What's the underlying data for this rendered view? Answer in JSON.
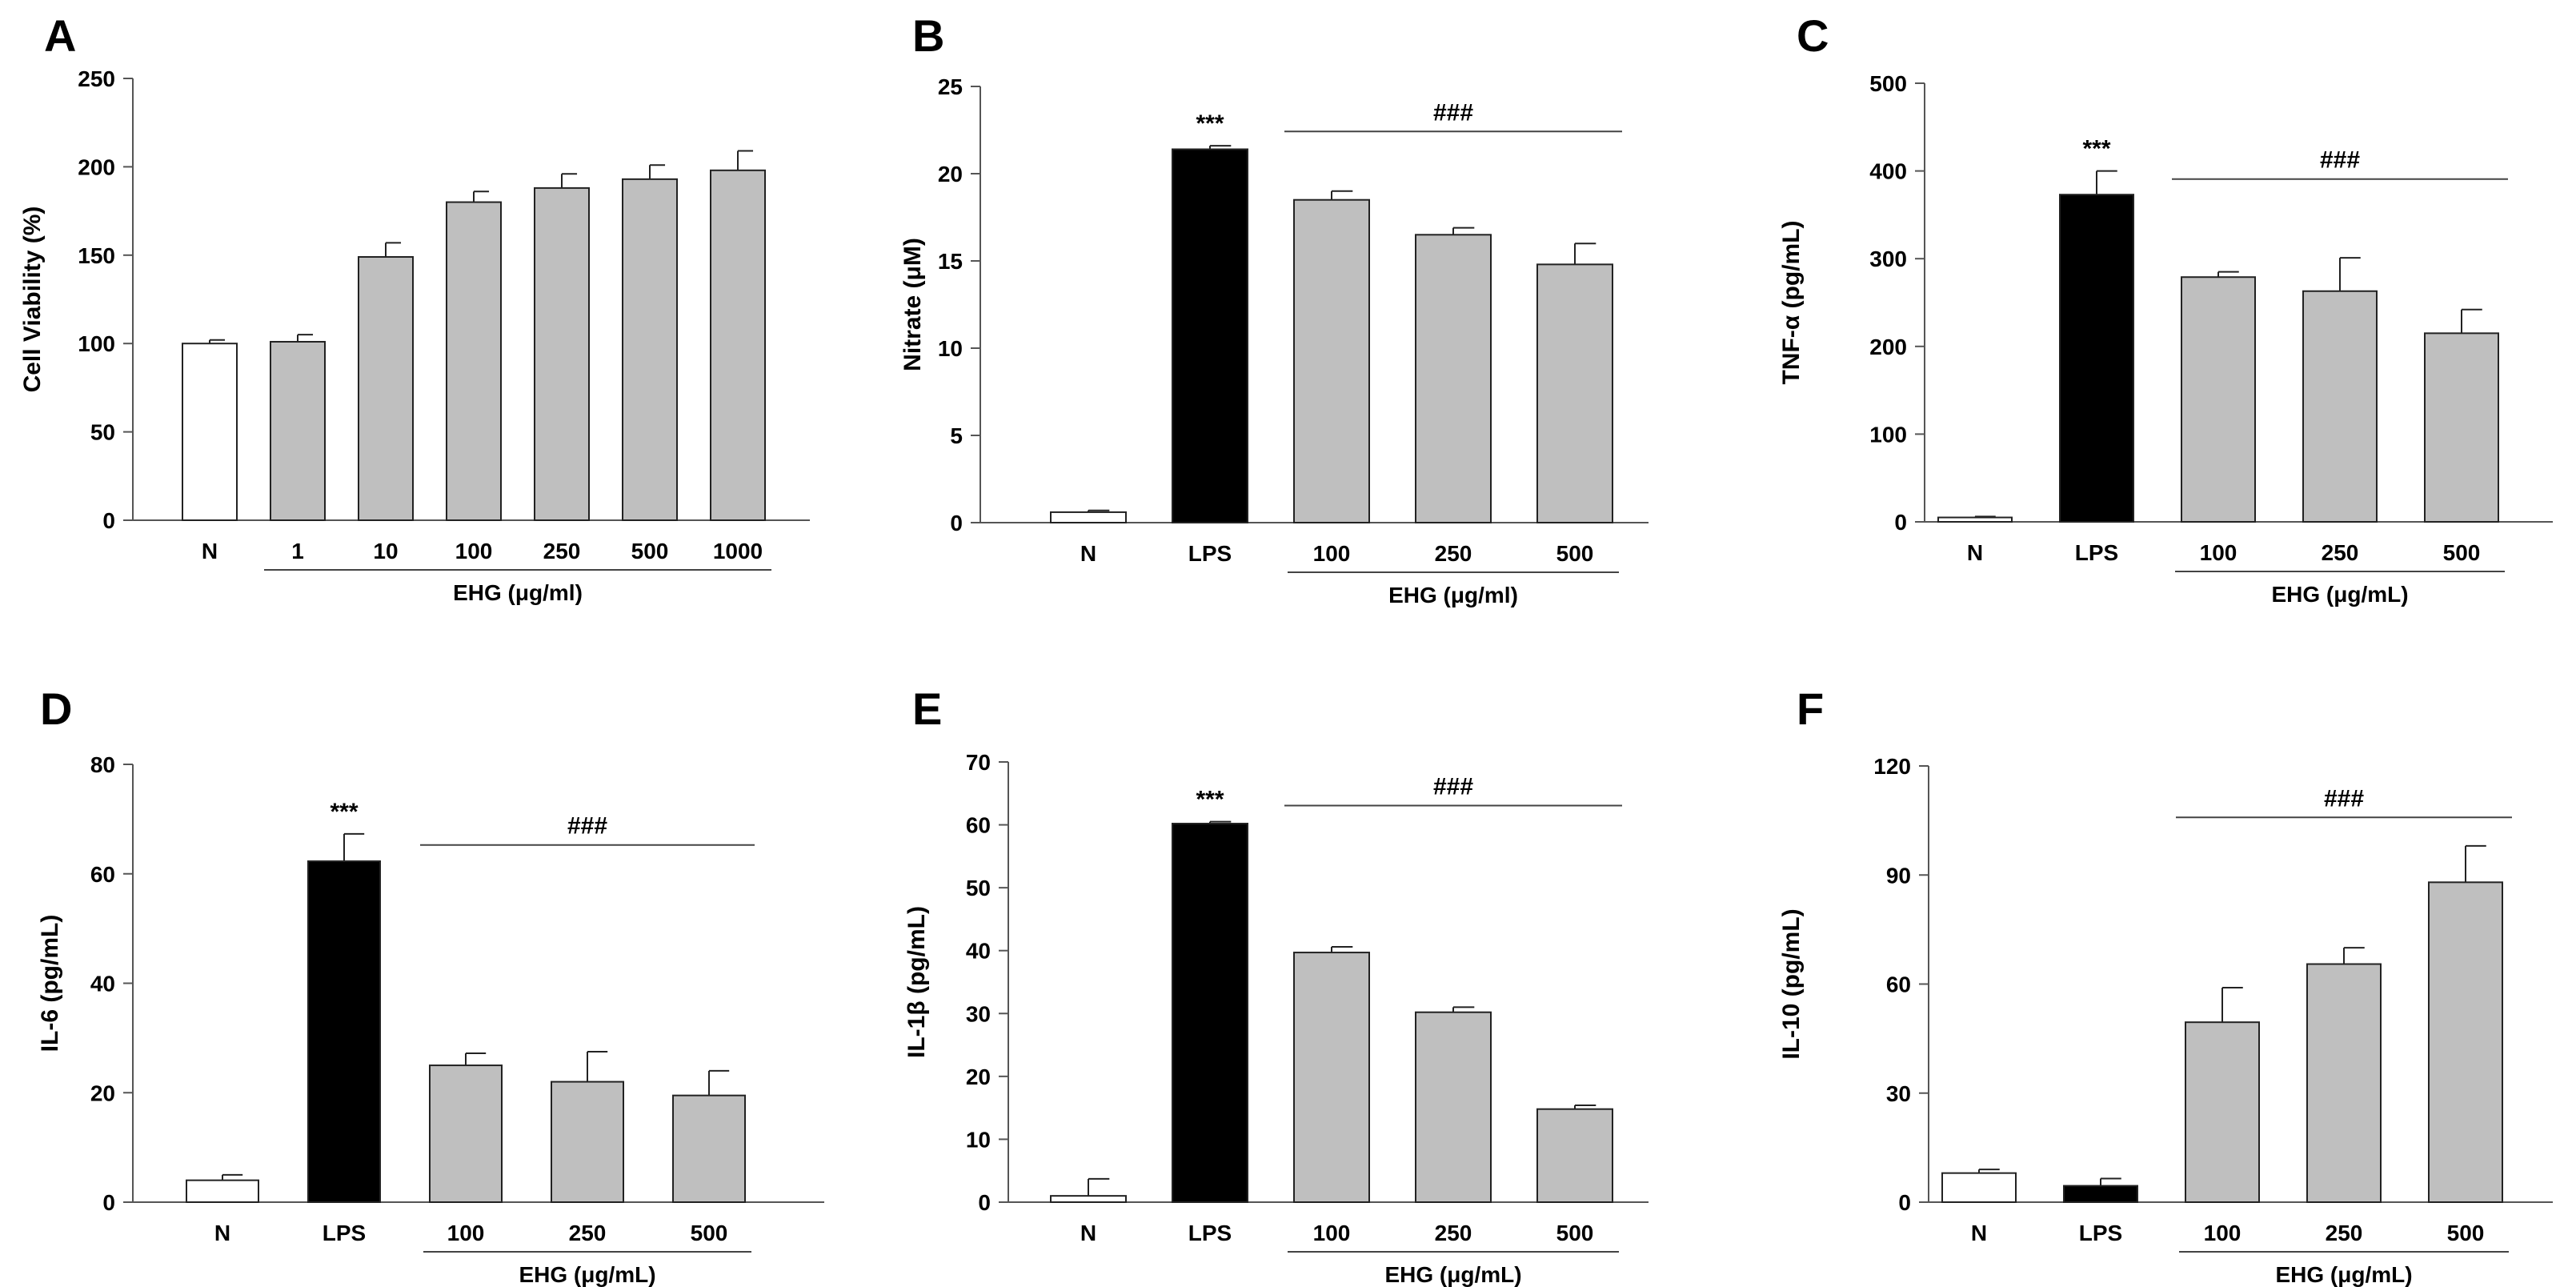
{
  "colors": {
    "white": "#ffffff",
    "black": "#000000",
    "gray": "#bfbfbf"
  },
  "chart_data": [
    {
      "type": "bar",
      "letter": "A",
      "ylabel": "Cell Viability (%)",
      "ylim": [
        0,
        250
      ],
      "yticks": [
        0,
        50,
        100,
        150,
        200,
        250
      ],
      "ytick_labels": [
        "0",
        "50",
        "100",
        "150",
        "200",
        "250"
      ],
      "categories": [
        "N",
        "1",
        "10",
        "100",
        "250",
        "500",
        "1000"
      ],
      "values": [
        100,
        101,
        149,
        180,
        188,
        193,
        198
      ],
      "errors": [
        2,
        4,
        8,
        6,
        8,
        8,
        11
      ],
      "fills": [
        "white",
        "gray",
        "gray",
        "gray",
        "gray",
        "gray",
        "gray"
      ],
      "group_label": "EHG (μg/ml)",
      "group_span": [
        1,
        6
      ],
      "sig_stars": null,
      "sig_hash": null,
      "hash_span": null
    },
    {
      "type": "bar",
      "letter": "B",
      "ylabel": "Nitrate (μM)",
      "ylim": [
        0,
        25
      ],
      "yticks": [
        0,
        5,
        10,
        15,
        20,
        25
      ],
      "ytick_labels": [
        "0",
        "5",
        "10",
        "15",
        "20",
        "25"
      ],
      "categories": [
        "N",
        "LPS",
        "100",
        "250",
        "500"
      ],
      "values": [
        0.6,
        21.4,
        18.5,
        16.5,
        14.8
      ],
      "errors": [
        0.1,
        0.2,
        0.5,
        0.4,
        1.2
      ],
      "fills": [
        "white",
        "black",
        "gray",
        "gray",
        "gray"
      ],
      "group_label": "EHG (μg/ml)",
      "group_span": [
        2,
        4
      ],
      "sig_stars": "***",
      "sig_star_index": 1,
      "sig_hash": "###",
      "hash_span": [
        2,
        4
      ]
    },
    {
      "type": "bar",
      "letter": "C",
      "ylabel": "TNF-α (pg/mL)",
      "ylim": [
        0,
        500
      ],
      "yticks": [
        0,
        100,
        200,
        300,
        400,
        500
      ],
      "ytick_labels": [
        "0",
        "100",
        "200",
        "300",
        "400",
        "500"
      ],
      "categories": [
        "N",
        "LPS",
        "100",
        "250",
        "500"
      ],
      "values": [
        5,
        373,
        279,
        263,
        215
      ],
      "errors": [
        1,
        27,
        6,
        38,
        27
      ],
      "fills": [
        "white",
        "black",
        "gray",
        "gray",
        "gray"
      ],
      "group_label": "EHG (μg/mL)",
      "group_span": [
        2,
        4
      ],
      "sig_stars": "***",
      "sig_star_index": 1,
      "sig_hash": "###",
      "hash_span": [
        2,
        4
      ]
    },
    {
      "type": "bar",
      "letter": "D",
      "ylabel": "IL-6 (pg/mL)",
      "ylim": [
        0,
        80
      ],
      "yticks": [
        0,
        20,
        40,
        60,
        80
      ],
      "ytick_labels": [
        "0",
        "20",
        "40",
        "60",
        "80"
      ],
      "categories": [
        "N",
        "LPS",
        "100",
        "250",
        "500"
      ],
      "values": [
        4,
        62.3,
        25,
        22,
        19.5
      ],
      "errors": [
        1,
        5,
        2.2,
        5.5,
        4.5
      ],
      "fills": [
        "white",
        "black",
        "gray",
        "gray",
        "gray"
      ],
      "group_label": "EHG (μg/mL)",
      "group_span": [
        2,
        4
      ],
      "sig_stars": "***",
      "sig_star_index": 1,
      "sig_hash": "###",
      "hash_span": [
        2,
        4
      ]
    },
    {
      "type": "bar",
      "letter": "E",
      "ylabel": "IL-1β (pg/mL)",
      "ylim": [
        0,
        70
      ],
      "yticks": [
        0,
        10,
        20,
        30,
        40,
        50,
        60,
        70
      ],
      "ytick_labels": [
        "0",
        "10",
        "20",
        "30",
        "40",
        "50",
        "60",
        "70"
      ],
      "categories": [
        "N",
        "LPS",
        "100",
        "250",
        "500"
      ],
      "values": [
        1,
        60.2,
        39.7,
        30.2,
        14.8
      ],
      "errors": [
        2.7,
        0.3,
        0.9,
        0.8,
        0.6
      ],
      "fills": [
        "white",
        "black",
        "gray",
        "gray",
        "gray"
      ],
      "group_label": "EHG (μg/mL)",
      "group_span": [
        2,
        4
      ],
      "sig_stars": "***",
      "sig_star_index": 1,
      "sig_hash": "###",
      "hash_span": [
        2,
        4
      ]
    },
    {
      "type": "bar",
      "letter": "F",
      "ylabel": "IL-10 (pg/mL)",
      "ylim": [
        0,
        120
      ],
      "yticks": [
        0,
        30,
        60,
        90,
        120
      ],
      "ytick_labels": [
        "0",
        "30",
        "60",
        "90",
        "120"
      ],
      "categories": [
        "N",
        "LPS",
        "100",
        "250",
        "500"
      ],
      "values": [
        8,
        4.5,
        49.5,
        65.5,
        88
      ],
      "errors": [
        1,
        2,
        9.5,
        4.5,
        10
      ],
      "fills": [
        "white",
        "black",
        "gray",
        "gray",
        "gray"
      ],
      "group_label": "EHG (μg/mL)",
      "group_span": [
        2,
        4
      ],
      "sig_stars": null,
      "sig_hash": "###",
      "hash_span": [
        2,
        4
      ]
    }
  ]
}
